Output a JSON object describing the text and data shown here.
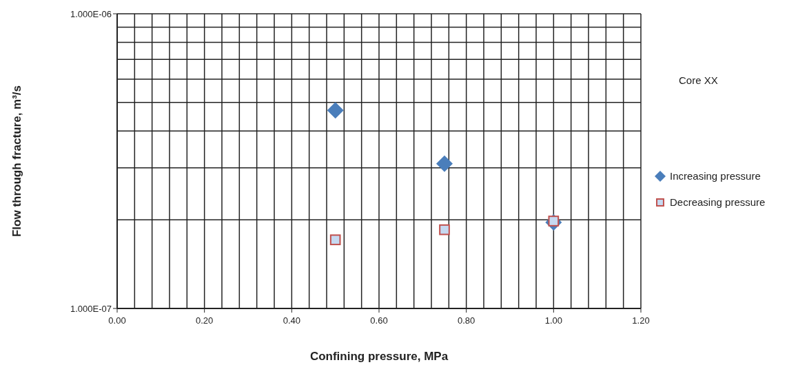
{
  "chart_data": {
    "type": "scatter",
    "xlabel": "Confining pressure, MPa",
    "ylabel": "Flow through fracture, m³/s",
    "annotations": [
      "Core XX"
    ],
    "log": "y",
    "grid": true,
    "legend": "right",
    "xlim": [
      0,
      1.2
    ],
    "xticks": [
      {
        "value": 0,
        "label": "0.00"
      },
      {
        "value": 0.04,
        "label": null
      },
      {
        "value": 0.08,
        "label": null
      },
      {
        "value": 0.12,
        "label": null
      },
      {
        "value": 0.16,
        "label": null
      },
      {
        "value": 0.2,
        "label": "0.20"
      },
      {
        "value": 0.24,
        "label": null
      },
      {
        "value": 0.28,
        "label": null
      },
      {
        "value": 0.32,
        "label": null
      },
      {
        "value": 0.36,
        "label": null
      },
      {
        "value": 0.4,
        "label": "0.40"
      },
      {
        "value": 0.44,
        "label": null
      },
      {
        "value": 0.48,
        "label": null
      },
      {
        "value": 0.52,
        "label": null
      },
      {
        "value": 0.56,
        "label": null
      },
      {
        "value": 0.6,
        "label": "0.60"
      },
      {
        "value": 0.64,
        "label": null
      },
      {
        "value": 0.68,
        "label": null
      },
      {
        "value": 0.72,
        "label": null
      },
      {
        "value": 0.76,
        "label": null
      },
      {
        "value": 0.8,
        "label": "0.80"
      },
      {
        "value": 0.84,
        "label": null
      },
      {
        "value": 0.88,
        "label": null
      },
      {
        "value": 0.92,
        "label": null
      },
      {
        "value": 0.96,
        "label": null
      },
      {
        "value": 1,
        "label": "1.00"
      },
      {
        "value": 1.04,
        "label": null
      },
      {
        "value": 1.08,
        "label": null
      },
      {
        "value": 1.12,
        "label": null
      },
      {
        "value": 1.16,
        "label": null
      },
      {
        "value": 1.2,
        "label": "1.20"
      }
    ],
    "ylim": [
      1e-07,
      1e-06
    ],
    "yticks": [
      {
        "value": 1e-07,
        "label": "1.000E-07"
      },
      {
        "value": 2e-07,
        "label": null
      },
      {
        "value": 3e-07,
        "label": null
      },
      {
        "value": 4e-07,
        "label": null
      },
      {
        "value": 5e-07,
        "label": null
      },
      {
        "value": 6e-07,
        "label": null
      },
      {
        "value": 7e-07,
        "label": null
      },
      {
        "value": 8e-07,
        "label": null
      },
      {
        "value": 9e-07,
        "label": null
      },
      {
        "value": 1e-06,
        "label": "1.000E-06"
      }
    ],
    "series": [
      {
        "name": "Increasing pressure",
        "color": "#4a7ebb",
        "marker": "diamond",
        "x": [
          0.5,
          0.75,
          1.0
        ],
        "values": [
          4.7e-07,
          3.1e-07,
          1.96e-07
        ]
      },
      {
        "name": "Decreasing pressure",
        "color": "#c0504d",
        "marker": "square",
        "x": [
          0.5,
          0.75,
          1.0
        ],
        "values": [
          1.71e-07,
          1.85e-07,
          1.98e-07
        ]
      }
    ]
  }
}
